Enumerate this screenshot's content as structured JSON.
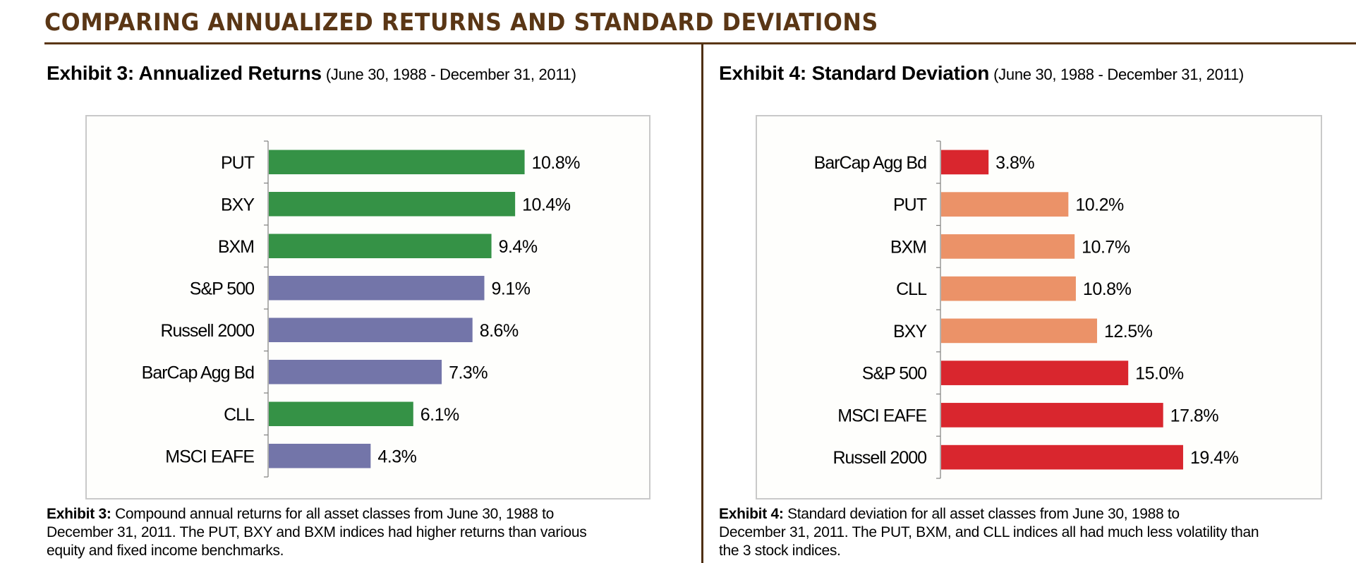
{
  "page": {
    "title": "COMPARING ANNUALIZED RETURNS AND STANDARD DEVIATIONS",
    "colors": {
      "brand_brown": "#5a3615",
      "option_strategy_green": "#359246",
      "benchmark_purple": "#7375a9",
      "low_volatility_salmon": "#eb9268",
      "high_volatility_red": "#d9262e"
    }
  },
  "exhibits": [
    {
      "heading": "Exhibit 3: Annualized Returns",
      "period": "(June 30, 1988 - December 31, 2011)",
      "caption_label": "Exhibit 3:",
      "caption_lines": [
        "Compound annual returns for all asset classes from June 30, 1988 to",
        "December 31, 2011. The PUT, BXY and BXM indices had higher returns than various",
        "equity and fixed income benchmarks."
      ]
    },
    {
      "heading": "Exhibit 4: Standard Deviation",
      "period": "(June 30, 1988 - December 31, 2011)",
      "caption_label": "Exhibit 4:",
      "caption_lines": [
        "Standard deviation for all asset classes from June 30, 1988 to",
        "December 31, 2011. The PUT, BXM, and CLL indices all had much less volatility than",
        "the 3 stock indices."
      ]
    }
  ],
  "chart_data": [
    {
      "type": "bar",
      "orientation": "horizontal",
      "title": "Exhibit 3: Annualized Returns (June 30, 1988 - December 31, 2011)",
      "xlabel": "",
      "ylabel": "",
      "unit": "%",
      "grid": false,
      "legend": "none",
      "xlim": [
        0,
        14
      ],
      "categories": [
        "PUT",
        "BXY",
        "BXM",
        "S&P 500",
        "Russell 2000",
        "BarCap Agg Bd",
        "CLL",
        "MSCI EAFE"
      ],
      "values": [
        10.8,
        10.4,
        9.4,
        9.1,
        8.6,
        7.3,
        6.1,
        4.3
      ],
      "data_labels": [
        "10.8%",
        "10.4%",
        "9.4%",
        "9.1%",
        "8.6%",
        "7.3%",
        "6.1%",
        "4.3%"
      ],
      "bar_colors": [
        "#359246",
        "#359246",
        "#359246",
        "#7375a9",
        "#7375a9",
        "#7375a9",
        "#359246",
        "#7375a9"
      ]
    },
    {
      "type": "bar",
      "orientation": "horizontal",
      "title": "Exhibit 4: Standard Deviation (June 30, 1988 - December 31, 2011)",
      "xlabel": "",
      "ylabel": "",
      "unit": "%",
      "grid": false,
      "legend": "none",
      "xlim": [
        0,
        28
      ],
      "categories": [
        "BarCap Agg Bd",
        "PUT",
        "BXM",
        "CLL",
        "BXY",
        "S&P 500",
        "MSCI EAFE",
        "Russell 2000"
      ],
      "values": [
        3.8,
        10.2,
        10.7,
        10.8,
        12.5,
        15.0,
        17.8,
        19.4
      ],
      "data_labels": [
        "3.8%",
        "10.2%",
        "10.7%",
        "10.8%",
        "12.5%",
        "15.0%",
        "17.8%",
        "19.4%"
      ],
      "bar_colors": [
        "#d9262e",
        "#eb9268",
        "#eb9268",
        "#eb9268",
        "#eb9268",
        "#d9262e",
        "#d9262e",
        "#d9262e"
      ]
    }
  ]
}
